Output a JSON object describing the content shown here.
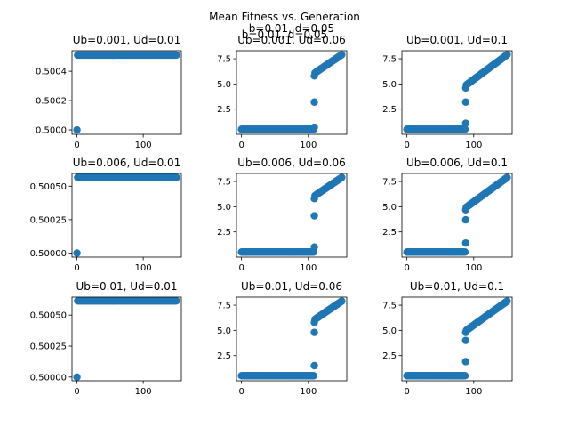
{
  "figure": {
    "title": "Mean Fitness vs. Generation",
    "overlay_text": "b=0.01, d=0.05",
    "marker_color": "#1f77b4"
  },
  "chart_data": [
    {
      "type": "scatter",
      "title": "Ub=0.001, Ud=0.01",
      "xlim": [
        -7.5,
        157.5
      ],
      "ylim": [
        0.49997,
        0.50054
      ],
      "xticks": [
        0,
        100
      ],
      "xtick_labels": [
        "0",
        "100"
      ],
      "yticks": [
        0.5,
        0.5002,
        0.5004
      ],
      "ytick_labels": [
        "0.5000",
        "0.5002",
        "0.5004"
      ],
      "points": {
        "start_x": 0,
        "start_y": 0.5,
        "plateau_from": 1,
        "plateau_to": 150,
        "plateau_y": 0.50051
      }
    },
    {
      "type": "scatter",
      "title": "b=0.01, d=0.05",
      "title_second_line": "Ub=0.001, Ud=0.06",
      "xlim": [
        -7.5,
        157.5
      ],
      "ylim": [
        0.0,
        8.3
      ],
      "xticks": [
        0,
        100
      ],
      "xtick_labels": [
        "0",
        "100"
      ],
      "yticks": [
        2.5,
        5.0,
        7.5
      ],
      "ytick_labels": [
        "2.5",
        "5.0",
        "7.5"
      ],
      "points": {
        "base_from": 0,
        "base_to": 108,
        "base_y": 0.5,
        "jump_x": 109,
        "jump_ys": [
          0.7,
          3.2,
          5.8
        ],
        "rise_from": 110,
        "rise_to": 150,
        "rise_start_y": 6.1,
        "rise_end_y": 7.9
      }
    },
    {
      "type": "scatter",
      "title": "Ub=0.001, Ud=0.1",
      "xlim": [
        -7.5,
        157.5
      ],
      "ylim": [
        0.0,
        8.3
      ],
      "xticks": [
        0,
        100
      ],
      "xtick_labels": [
        "0",
        "100"
      ],
      "yticks": [
        2.5,
        5.0,
        7.5
      ],
      "ytick_labels": [
        "2.5",
        "5.0",
        "7.5"
      ],
      "points": {
        "base_from": 0,
        "base_to": 87,
        "base_y": 0.5,
        "jump_x": 88,
        "jump_ys": [
          1.1,
          3.2,
          4.6
        ],
        "rise_from": 89,
        "rise_to": 150,
        "rise_start_y": 4.9,
        "rise_end_y": 7.9
      }
    },
    {
      "type": "scatter",
      "title": "Ub=0.006, Ud=0.01",
      "xlim": [
        -7.5,
        157.5
      ],
      "ylim": [
        0.49997,
        0.500595
      ],
      "xticks": [
        0,
        100
      ],
      "xtick_labels": [
        "0",
        "100"
      ],
      "yticks": [
        0.5,
        0.50025,
        0.5005
      ],
      "ytick_labels": [
        "0.50000",
        "0.50025",
        "0.50050"
      ],
      "points": {
        "start_x": 0,
        "start_y": 0.5,
        "plateau_from": 1,
        "plateau_to": 150,
        "plateau_y": 0.500565
      }
    },
    {
      "type": "scatter",
      "title": "Ub=0.006, Ud=0.06",
      "xlim": [
        -7.5,
        157.5
      ],
      "ylim": [
        0.0,
        8.3
      ],
      "xticks": [
        0,
        100
      ],
      "xtick_labels": [
        "0",
        "100"
      ],
      "yticks": [
        2.5,
        5.0,
        7.5
      ],
      "ytick_labels": [
        "2.5",
        "5.0",
        "7.5"
      ],
      "points": {
        "base_from": 0,
        "base_to": 108,
        "base_y": 0.5,
        "jump_x": 109,
        "jump_ys": [
          1.0,
          4.1,
          5.8
        ],
        "rise_from": 110,
        "rise_to": 150,
        "rise_start_y": 6.1,
        "rise_end_y": 7.9
      }
    },
    {
      "type": "scatter",
      "title": "Ub=0.006, Ud=0.1",
      "xlim": [
        -7.5,
        157.5
      ],
      "ylim": [
        0.0,
        8.3
      ],
      "xticks": [
        0,
        100
      ],
      "xtick_labels": [
        "0",
        "100"
      ],
      "yticks": [
        2.5,
        5.0,
        7.5
      ],
      "ytick_labels": [
        "2.5",
        "5.0",
        "7.5"
      ],
      "points": {
        "base_from": 0,
        "base_to": 87,
        "base_y": 0.5,
        "jump_x": 88,
        "jump_ys": [
          1.4,
          3.7,
          4.7
        ],
        "rise_from": 89,
        "rise_to": 150,
        "rise_start_y": 4.95,
        "rise_end_y": 7.9
      }
    },
    {
      "type": "scatter",
      "title": "Ub=0.01, Ud=0.01",
      "xlim": [
        -7.5,
        157.5
      ],
      "ylim": [
        0.49997,
        0.500645
      ],
      "xticks": [
        0,
        100
      ],
      "xtick_labels": [
        "0",
        "100"
      ],
      "yticks": [
        0.5,
        0.50025,
        0.5005
      ],
      "ytick_labels": [
        "0.50000",
        "0.50025",
        "0.50050"
      ],
      "points": {
        "start_x": 0,
        "start_y": 0.5,
        "plateau_from": 1,
        "plateau_to": 150,
        "plateau_y": 0.500615
      }
    },
    {
      "type": "scatter",
      "title": "Ub=0.01, Ud=0.06",
      "xlim": [
        -7.5,
        157.5
      ],
      "ylim": [
        0.0,
        8.3
      ],
      "xticks": [
        0,
        100
      ],
      "xtick_labels": [
        "0",
        "100"
      ],
      "yticks": [
        2.5,
        5.0,
        7.5
      ],
      "ytick_labels": [
        "2.5",
        "5.0",
        "7.5"
      ],
      "points": {
        "base_from": 0,
        "base_to": 108,
        "base_y": 0.5,
        "jump_x": 109,
        "jump_ys": [
          1.5,
          4.8,
          5.8
        ],
        "rise_from": 110,
        "rise_to": 150,
        "rise_start_y": 6.1,
        "rise_end_y": 7.9
      }
    },
    {
      "type": "scatter",
      "title": "Ub=0.01, Ud=0.1",
      "xlim": [
        -7.5,
        157.5
      ],
      "ylim": [
        0.0,
        8.3
      ],
      "xticks": [
        0,
        100
      ],
      "xtick_labels": [
        "0",
        "100"
      ],
      "yticks": [
        2.5,
        5.0,
        7.5
      ],
      "ytick_labels": [
        "2.5",
        "5.0",
        "7.5"
      ],
      "points": {
        "base_from": 0,
        "base_to": 87,
        "base_y": 0.5,
        "jump_x": 88,
        "jump_ys": [
          1.9,
          4.0,
          4.8
        ],
        "rise_from": 89,
        "rise_to": 150,
        "rise_start_y": 5.0,
        "rise_end_y": 7.9
      }
    }
  ]
}
